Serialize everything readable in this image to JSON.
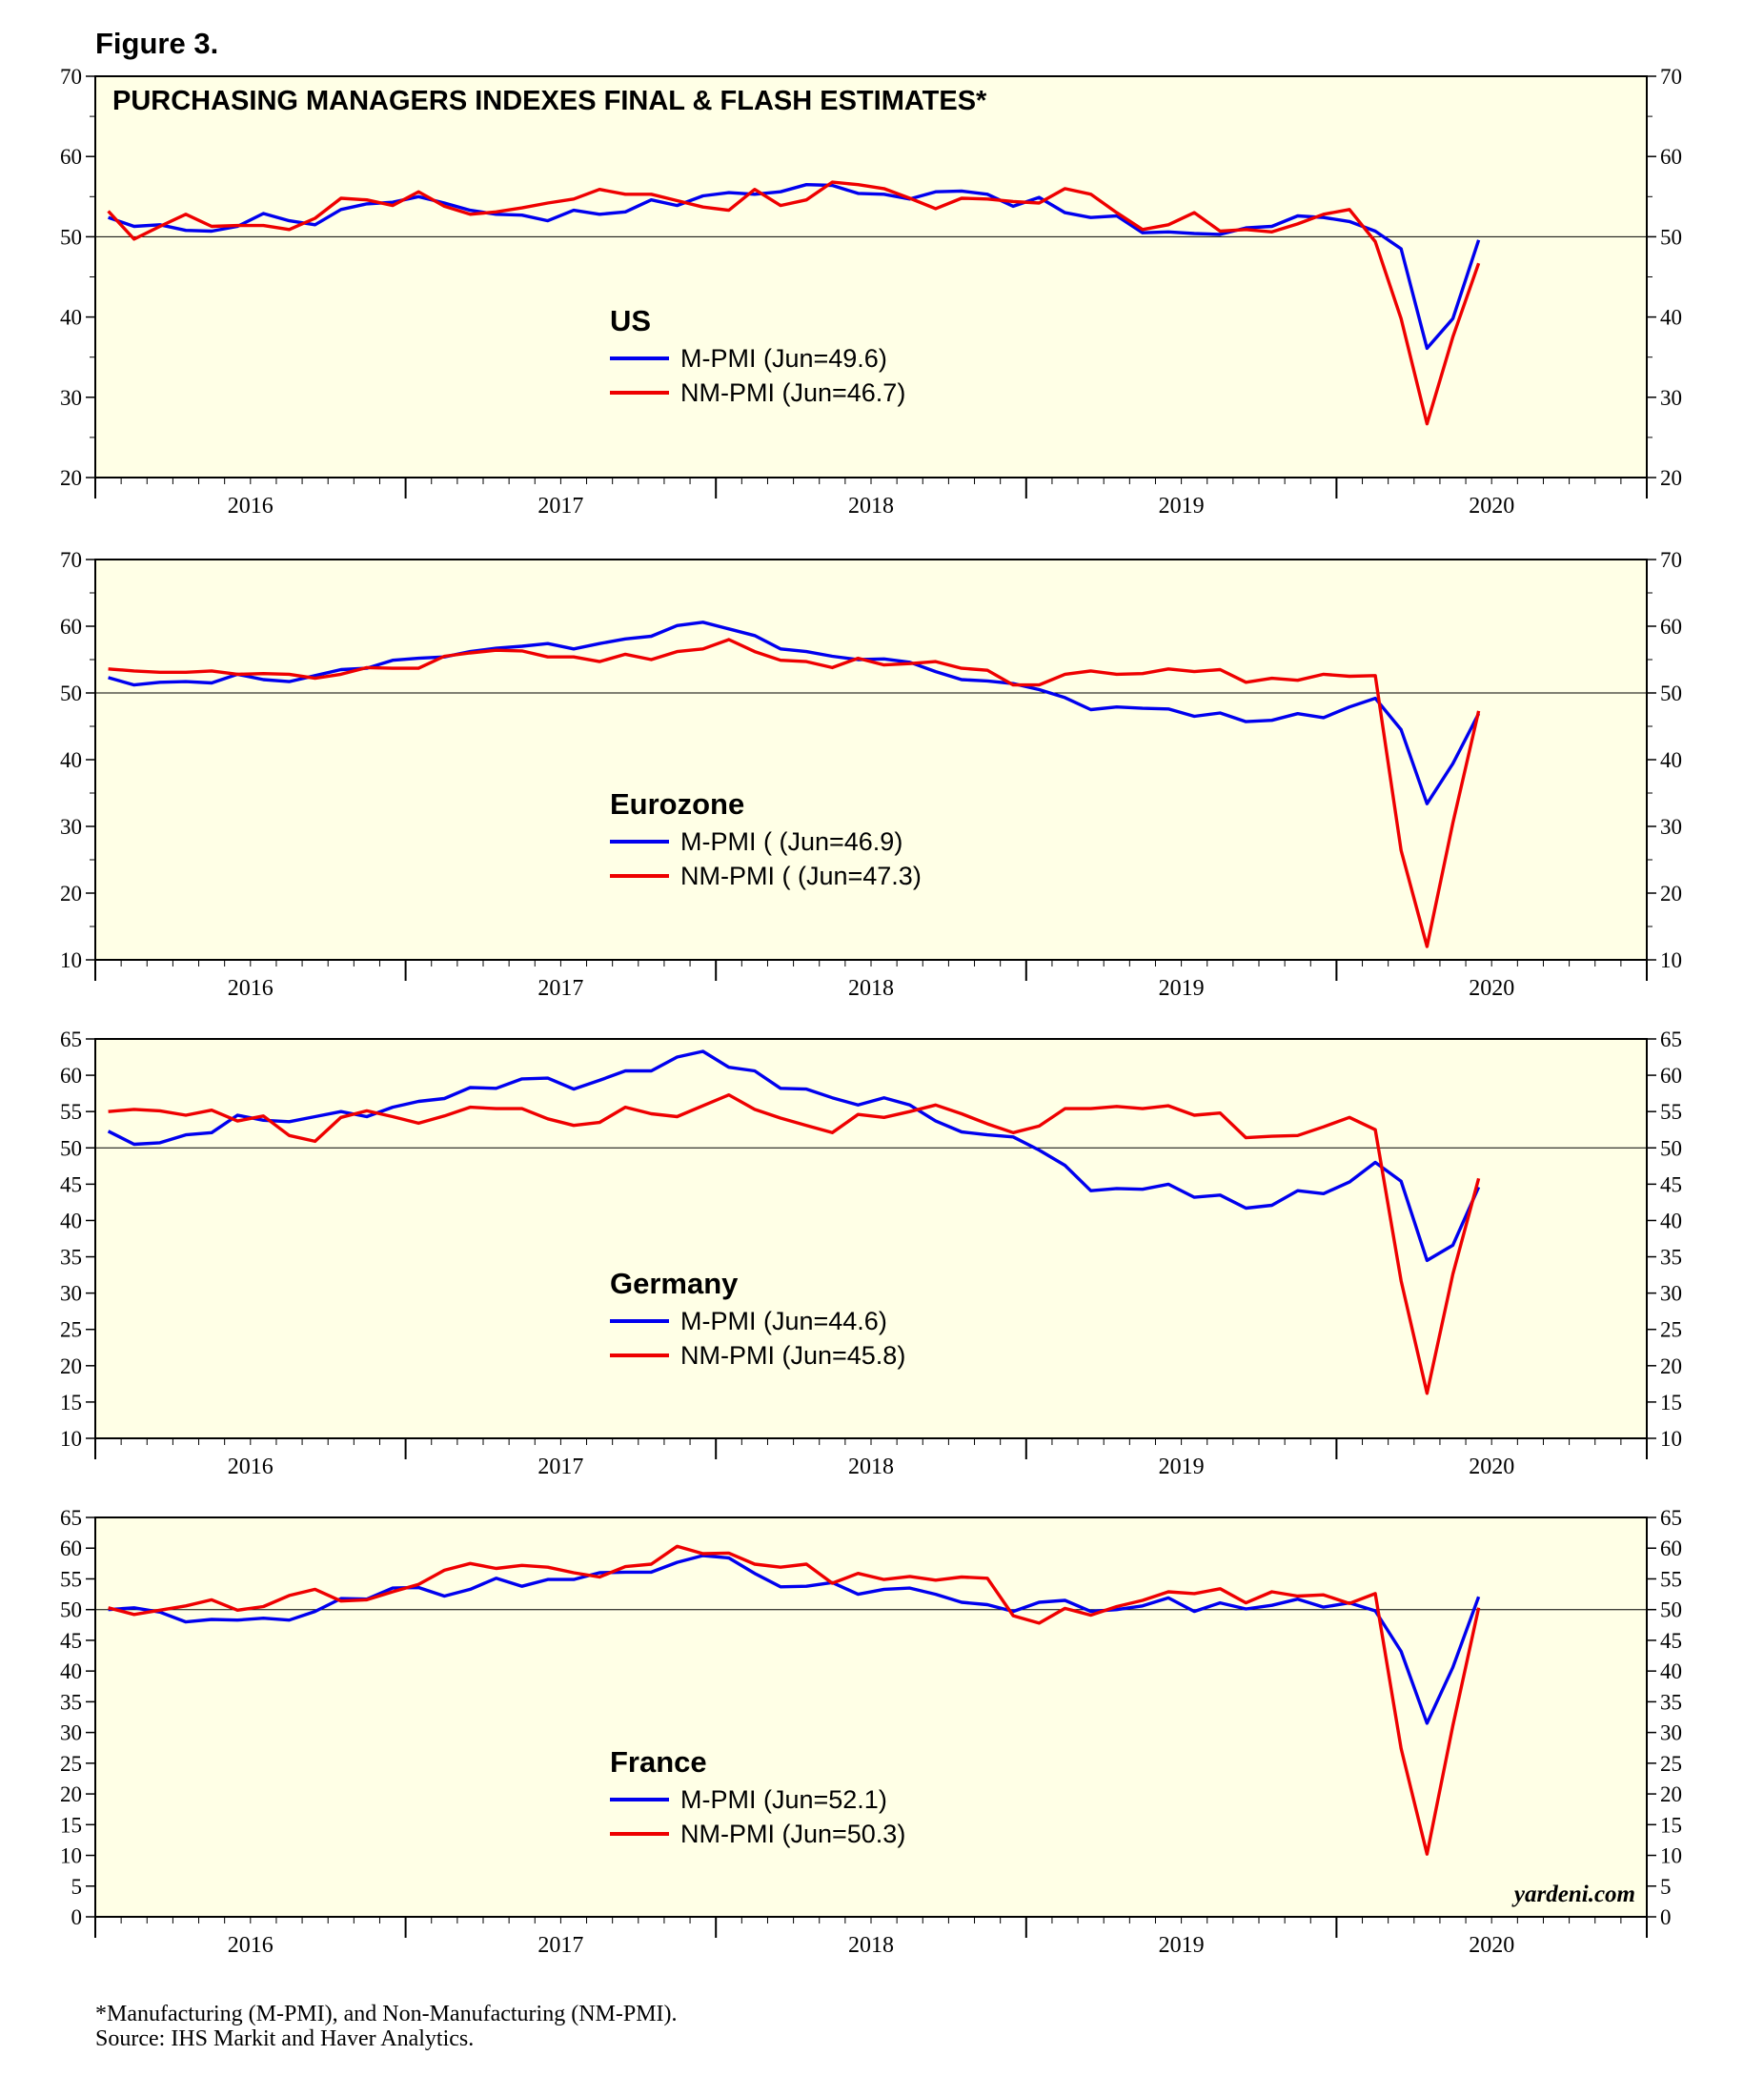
{
  "figure_label": "Figure 3.",
  "footnote": "*Manufacturing (M-PMI), and Non-Manufacturing (NM-PMI).",
  "source": "Source: IHS Markit and Haver Analytics.",
  "watermark": "yardeni.com",
  "colors": {
    "panel_bg": "#ffffe6",
    "m_pmi": "#0000ee",
    "nm_pmi": "#ee0000",
    "axis": "#000000"
  },
  "x_axis": {
    "years": [
      "2016",
      "2017",
      "2018",
      "2019",
      "2020"
    ],
    "start": 2016.0,
    "end": 2021.0
  },
  "chart_data": [
    {
      "type": "line",
      "title": "PURCHASING MANAGERS INDEXES FINAL & FLASH ESTIMATES*",
      "region": "US",
      "ylim": [
        20,
        70
      ],
      "yticks": [
        20,
        30,
        40,
        50,
        60,
        70
      ],
      "minor_step": 5,
      "reference_line": 50,
      "series": [
        {
          "name": "M-PMI (Jun=49.6)",
          "color": "#0000ee",
          "values": [
            52.4,
            51.3,
            51.5,
            50.8,
            50.7,
            51.3,
            52.9,
            52.0,
            51.5,
            53.4,
            54.1,
            54.3,
            55.0,
            54.2,
            53.3,
            52.8,
            52.7,
            52.0,
            53.3,
            52.8,
            53.1,
            54.6,
            53.9,
            55.1,
            55.5,
            55.3,
            55.6,
            56.5,
            56.4,
            55.4,
            55.3,
            54.7,
            55.6,
            55.7,
            55.3,
            53.8,
            54.9,
            53.0,
            52.4,
            52.6,
            50.5,
            50.6,
            50.4,
            50.3,
            51.1,
            51.3,
            52.6,
            52.4,
            51.9,
            50.7,
            48.5,
            36.1,
            39.8,
            49.6
          ]
        },
        {
          "name": "NM-PMI (Jun=46.7)",
          "color": "#ee0000",
          "values": [
            53.2,
            49.7,
            51.3,
            52.8,
            51.3,
            51.4,
            51.4,
            50.9,
            52.3,
            54.8,
            54.6,
            53.9,
            55.6,
            53.8,
            52.8,
            53.1,
            53.6,
            54.2,
            54.7,
            55.9,
            55.3,
            55.3,
            54.5,
            53.7,
            53.3,
            55.9,
            53.9,
            54.6,
            56.8,
            56.5,
            56.0,
            54.8,
            53.5,
            54.8,
            54.7,
            54.4,
            54.2,
            56.0,
            55.3,
            53.0,
            50.9,
            51.5,
            53.0,
            50.7,
            50.9,
            50.6,
            51.6,
            52.8,
            53.4,
            49.4,
            39.8,
            26.7,
            37.5,
            46.7
          ]
        }
      ]
    },
    {
      "type": "line",
      "region": "Eurozone",
      "ylim": [
        10,
        70
      ],
      "yticks": [
        10,
        20,
        30,
        40,
        50,
        60,
        70
      ],
      "minor_step": 5,
      "reference_line": 50,
      "series": [
        {
          "name": "M-PMI ( (Jun=46.9)",
          "color": "#0000ee",
          "values": [
            52.3,
            51.2,
            51.6,
            51.7,
            51.5,
            52.8,
            52.0,
            51.7,
            52.6,
            53.5,
            53.7,
            54.9,
            55.2,
            55.4,
            56.2,
            56.7,
            57.0,
            57.4,
            56.6,
            57.4,
            58.1,
            58.5,
            60.1,
            60.6,
            59.6,
            58.6,
            56.6,
            56.2,
            55.5,
            55.0,
            55.1,
            54.6,
            53.2,
            52.0,
            51.8,
            51.4,
            50.5,
            49.3,
            47.5,
            47.9,
            47.7,
            47.6,
            46.5,
            47.0,
            45.7,
            45.9,
            46.9,
            46.3,
            47.9,
            49.2,
            44.5,
            33.4,
            39.4,
            46.9
          ]
        },
        {
          "name": "NM-PMI ( (Jun=47.3)",
          "color": "#ee0000",
          "values": [
            53.6,
            53.3,
            53.1,
            53.1,
            53.3,
            52.8,
            52.9,
            52.8,
            52.2,
            52.8,
            53.8,
            53.7,
            53.7,
            55.5,
            56.0,
            56.4,
            56.3,
            55.4,
            55.4,
            54.7,
            55.8,
            55.0,
            56.2,
            56.6,
            58.0,
            56.2,
            54.9,
            54.7,
            53.8,
            55.2,
            54.2,
            54.4,
            54.7,
            53.7,
            53.4,
            51.2,
            51.2,
            52.8,
            53.3,
            52.8,
            52.9,
            53.6,
            53.2,
            53.5,
            51.6,
            52.2,
            51.9,
            52.8,
            52.5,
            52.6,
            26.4,
            12.0,
            30.5,
            47.3
          ]
        }
      ]
    },
    {
      "type": "line",
      "region": "Germany",
      "ylim": [
        10,
        65
      ],
      "yticks": [
        10,
        15,
        20,
        25,
        30,
        35,
        40,
        45,
        50,
        55,
        60,
        65
      ],
      "minor_step": 0,
      "reference_line": 50,
      "series": [
        {
          "name": "M-PMI (Jun=44.6)",
          "color": "#0000ee",
          "values": [
            52.3,
            50.5,
            50.7,
            51.8,
            52.1,
            54.5,
            53.8,
            53.6,
            54.3,
            55.0,
            54.3,
            55.6,
            56.4,
            56.8,
            58.3,
            58.2,
            59.5,
            59.6,
            58.1,
            59.3,
            60.6,
            60.6,
            62.5,
            63.3,
            61.1,
            60.6,
            58.2,
            58.1,
            56.9,
            55.9,
            56.9,
            55.9,
            53.7,
            52.2,
            51.8,
            51.5,
            49.7,
            47.6,
            44.1,
            44.4,
            44.3,
            45.0,
            43.2,
            43.5,
            41.7,
            42.1,
            44.1,
            43.7,
            45.3,
            48.0,
            45.4,
            34.5,
            36.6,
            44.6
          ]
        },
        {
          "name": "NM-PMI (Jun=45.8)",
          "color": "#ee0000",
          "values": [
            55.0,
            55.3,
            55.1,
            54.5,
            55.2,
            53.7,
            54.4,
            51.7,
            50.9,
            54.2,
            55.1,
            54.3,
            53.4,
            54.4,
            55.6,
            55.4,
            55.4,
            54.0,
            53.1,
            53.5,
            55.6,
            54.7,
            54.3,
            55.8,
            57.3,
            55.3,
            54.1,
            53.1,
            52.1,
            54.6,
            54.2,
            55.0,
            55.9,
            54.7,
            53.3,
            52.1,
            53.0,
            55.4,
            55.4,
            55.7,
            55.4,
            55.8,
            54.5,
            54.8,
            51.4,
            51.6,
            51.7,
            52.9,
            54.2,
            52.5,
            31.7,
            16.2,
            32.6,
            45.8
          ]
        }
      ]
    },
    {
      "type": "line",
      "region": "France",
      "ylim": [
        0,
        65
      ],
      "yticks": [
        0,
        5,
        10,
        15,
        20,
        25,
        30,
        35,
        40,
        45,
        50,
        55,
        60,
        65
      ],
      "minor_step": 0,
      "reference_line": 50,
      "series": [
        {
          "name": "M-PMI (Jun=52.1)",
          "color": "#0000ee",
          "values": [
            50.0,
            50.3,
            49.6,
            48.0,
            48.4,
            48.3,
            48.6,
            48.3,
            49.7,
            51.8,
            51.7,
            53.5,
            53.6,
            52.2,
            53.3,
            55.1,
            53.8,
            54.9,
            54.9,
            56.0,
            56.1,
            56.1,
            57.7,
            58.8,
            58.4,
            55.9,
            53.7,
            53.8,
            54.4,
            52.5,
            53.3,
            53.5,
            52.5,
            51.2,
            50.8,
            49.7,
            51.2,
            51.5,
            49.7,
            50.0,
            50.6,
            51.9,
            49.7,
            51.1,
            50.1,
            50.7,
            51.7,
            50.4,
            51.1,
            49.8,
            43.2,
            31.5,
            40.6,
            52.1
          ]
        },
        {
          "name": "NM-PMI (Jun=50.3)",
          "color": "#ee0000",
          "values": [
            50.3,
            49.2,
            49.9,
            50.6,
            51.6,
            49.9,
            50.5,
            52.3,
            53.3,
            51.4,
            51.6,
            52.9,
            54.1,
            56.4,
            57.5,
            56.7,
            57.2,
            56.9,
            56.0,
            55.3,
            57.0,
            57.4,
            60.3,
            59.1,
            59.2,
            57.4,
            56.9,
            57.4,
            54.3,
            55.9,
            54.9,
            55.4,
            54.8,
            55.3,
            55.1,
            49.0,
            47.8,
            50.2,
            49.1,
            50.5,
            51.5,
            52.9,
            52.6,
            53.4,
            51.1,
            52.9,
            52.2,
            52.4,
            51.0,
            52.6,
            27.4,
            10.2,
            31.1,
            50.3
          ]
        }
      ]
    }
  ]
}
